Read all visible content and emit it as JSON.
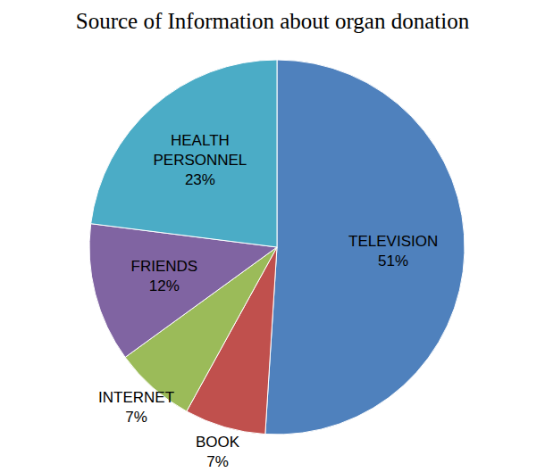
{
  "chart_data": {
    "type": "pie",
    "title": "Source of Information about organ donation",
    "categories": [
      "TELEVISION",
      "BOOK",
      "INTERNET",
      "FRIENDS",
      "HEALTH PERSONNEL"
    ],
    "values": [
      51,
      7,
      7,
      12,
      23
    ],
    "value_labels": [
      "51%",
      "7%",
      "7%",
      "12%",
      "23%"
    ],
    "colors": [
      "#4f81bd",
      "#c0504d",
      "#9bbb59",
      "#8064a2",
      "#4bacc6"
    ],
    "data_labels": true
  }
}
